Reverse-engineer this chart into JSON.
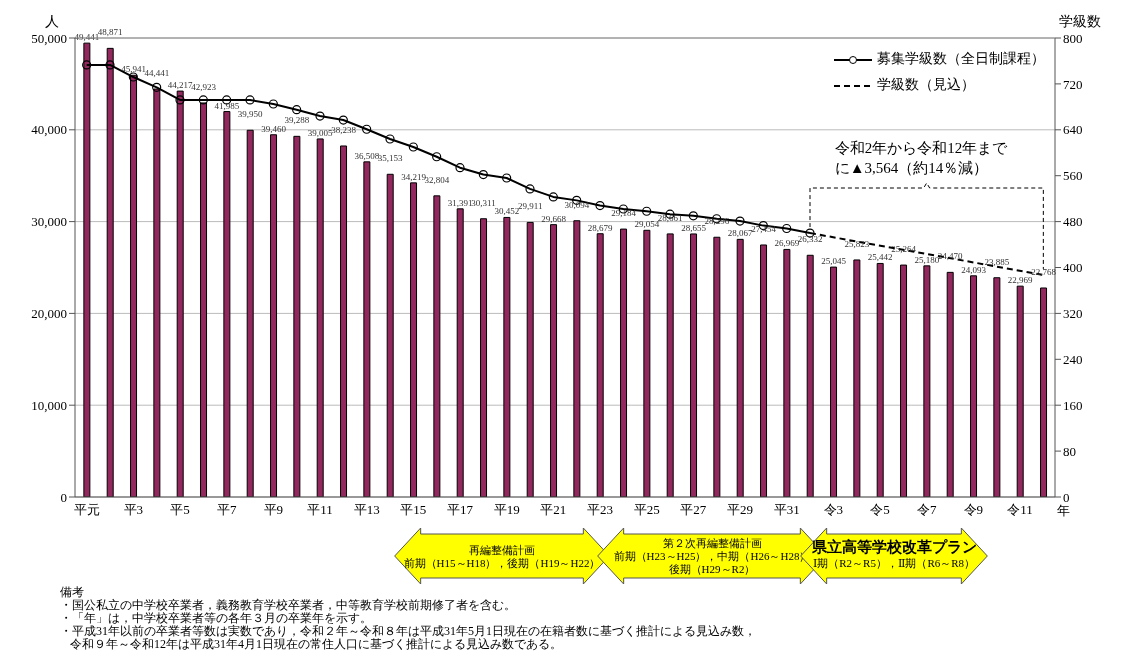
{
  "chart_data": {
    "type": "bar",
    "ylabel": "人",
    "y2label": "学級数",
    "xlabel": "年",
    "categories": [
      "平元",
      null,
      "平3",
      null,
      "平5",
      null,
      "平7",
      null,
      "平9",
      null,
      "平11",
      null,
      "平13",
      null,
      "平15",
      null,
      "平17",
      null,
      "平19",
      null,
      "平21",
      null,
      "平23",
      null,
      "平25",
      null,
      "平27",
      null,
      "平29",
      null,
      "平31",
      null,
      "令3",
      null,
      "令5",
      null,
      "令7",
      null,
      "令9",
      null,
      "令11",
      null
    ],
    "series": [
      {
        "color": "#93285f",
        "values": [
          49441,
          48871,
          45941,
          44441,
          44217,
          42923,
          41985,
          39950,
          39460,
          39288,
          39005,
          38238,
          36508,
          35153,
          34219,
          32804,
          31391,
          30311,
          30452,
          29911,
          29668,
          30094,
          28679,
          29184,
          29054,
          28661,
          28655,
          28296,
          28067,
          27454,
          26969,
          26332,
          25045,
          25823,
          25442,
          25264,
          25180,
          24470,
          24093,
          23885,
          22969,
          22768
        ],
        "value_labels": [
          "49,441",
          "48,871",
          "45,941",
          "44,441",
          "44,217",
          "42,923",
          "41,985",
          "39,950",
          "39,460",
          "39,288",
          "39,005",
          "38,238",
          "36,508",
          "35,153",
          "34,219",
          "32,804",
          "31,391",
          "30,311",
          "30,452",
          "29,911",
          "29,668",
          "30,094",
          "28,679",
          "29,184",
          "29,054",
          "28,661",
          "28,655",
          "28,296",
          "28,067",
          "27,454",
          "26,969",
          "26,332",
          "25,045",
          "25,823",
          "25,442",
          "25,264",
          "25,180",
          "24,470",
          "24,093",
          "23,885",
          "22,969",
          "22,768"
        ]
      },
      {
        "type": "line",
        "name": "募集学級数（全日制課程）",
        "axis": "y2",
        "color": "#000000",
        "marker": "circle",
        "line_style": "solid",
        "values": [
          753,
          753,
          732,
          714,
          692,
          692,
          692,
          692,
          685,
          675,
          664,
          657,
          641,
          624,
          610,
          593,
          574,
          562,
          556,
          537,
          523,
          517,
          508,
          502,
          498,
          493,
          490,
          485,
          481,
          473,
          468,
          460,
          null,
          null,
          null,
          null,
          null,
          null,
          null,
          null,
          null,
          null
        ]
      },
      {
        "type": "line",
        "name": "学級数（見込）",
        "axis": "y2",
        "color": "#000000",
        "line_style": "dashed",
        "values": [
          null,
          null,
          null,
          null,
          null,
          null,
          null,
          null,
          null,
          null,
          null,
          null,
          null,
          null,
          null,
          null,
          null,
          null,
          null,
          null,
          null,
          null,
          null,
          null,
          null,
          null,
          null,
          null,
          null,
          null,
          null,
          460,
          null,
          null,
          null,
          null,
          null,
          null,
          null,
          null,
          null,
          387
        ]
      }
    ],
    "ylim": [
      0,
      50000
    ],
    "yticks": [
      0,
      {
        "value": 10000,
        "label": "10,000"
      },
      {
        "value": 20000,
        "label": "20,000"
      },
      {
        "value": 30000,
        "label": "30,000"
      },
      {
        "value": 40000,
        "label": "40,000"
      },
      {
        "value": 50000,
        "label": "50,000"
      }
    ],
    "y2lim": [
      0,
      800
    ],
    "y2ticks": [
      0,
      80,
      160,
      240,
      320,
      400,
      480,
      560,
      640,
      720,
      800
    ],
    "grid": "y",
    "legend": "top right",
    "annotations": [
      "令和2年から令和12年までに▲3,564（約14％減）",
      "再編整備計画",
      "前期（H15～H18），後期（H19～H22）",
      "第２次再編整備計画",
      "前期（H23～H25），中期（H26～H28）",
      "後期（H29～R2）",
      "県立高等学校改革プラン",
      "Ⅰ期（R2～R5），Ⅱ期（R6～R8）",
      "備考",
      "・国公私立の中学校卒業者，義務教育学校卒業者，中等教育学校前期修了者を含む。",
      "・「年」は，中学校卒業者等の各年３月の卒業年を示す。",
      "・平成31年以前の卒業者等数は実数であり，令和２年～令和８年は平成31年5月1日現在の在籍者数に基づく推計による見込み数，",
      "令和９年～令和12年は平成31年4月1日現在の常住人口に基づく推計による見込み数である。"
    ]
  }
}
